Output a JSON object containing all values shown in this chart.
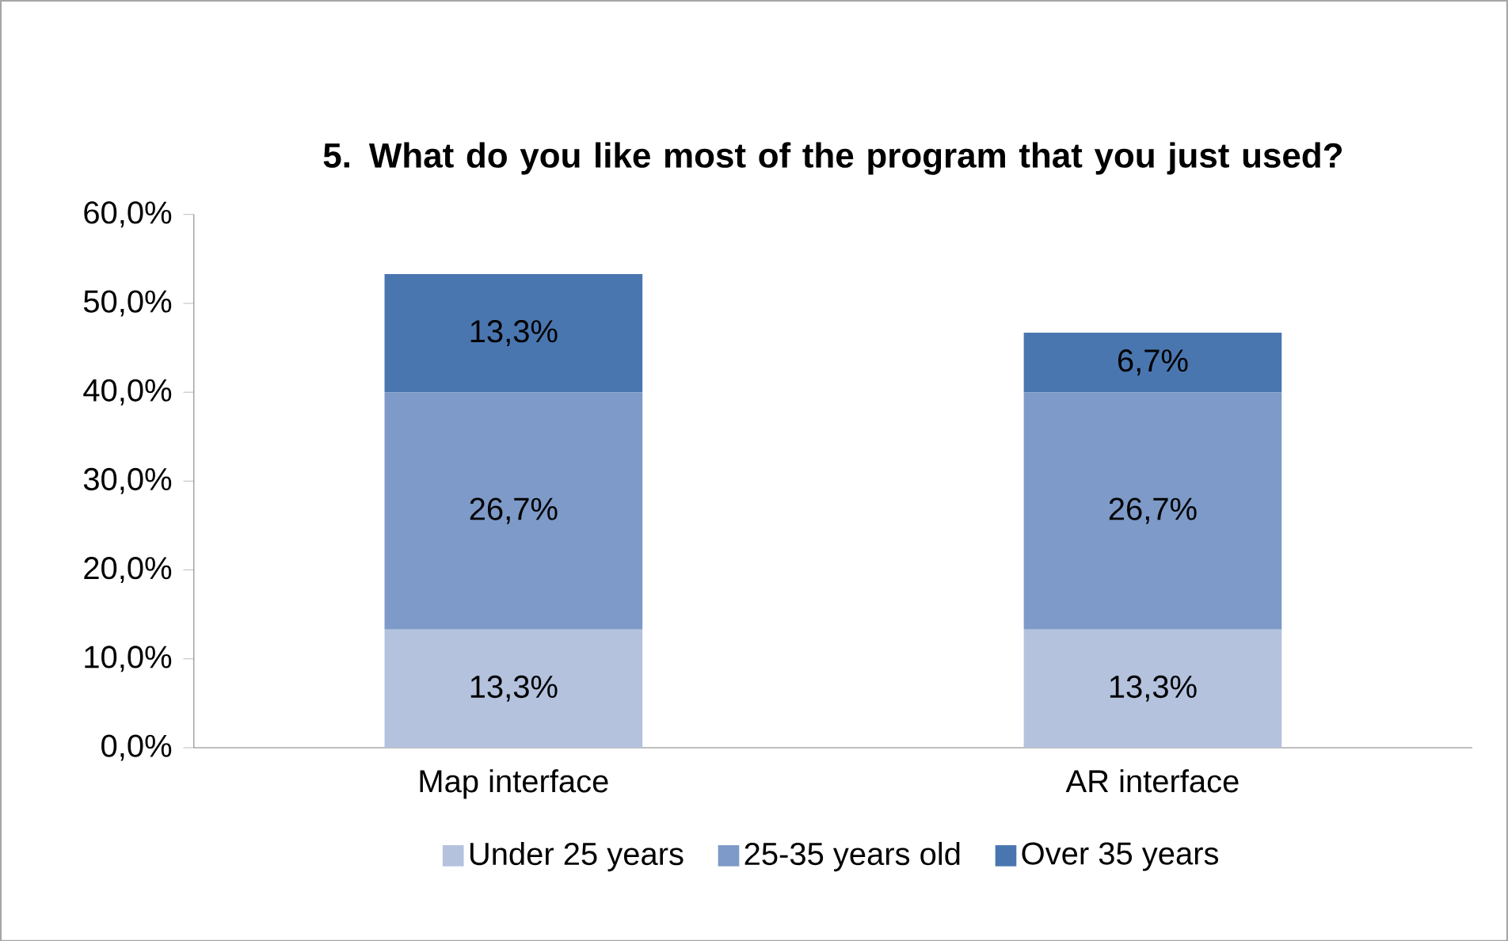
{
  "chart_data": {
    "type": "bar",
    "stacked": true,
    "title": "5. What do you like most of the program that you just used?",
    "categories": [
      "Map interface",
      "AR interface"
    ],
    "series": [
      {
        "name": "Under 25 years",
        "color": "#b4c2de",
        "values": [
          13.3,
          13.3
        ],
        "value_labels": [
          "13,3%",
          "13,3%"
        ]
      },
      {
        "name": "25-35 years old",
        "color": "#7d9ac8",
        "values": [
          26.7,
          26.7
        ],
        "value_labels": [
          "26,7%",
          "26,7%"
        ]
      },
      {
        "name": "Over 35 years",
        "color": "#4a76b0",
        "values": [
          13.3,
          6.7
        ],
        "value_labels": [
          "13,3%",
          "6,7%"
        ]
      }
    ],
    "ylim": [
      0,
      60
    ],
    "yticks": [
      {
        "value": 0,
        "label": "0,0%"
      },
      {
        "value": 10,
        "label": "10,0%"
      },
      {
        "value": 20,
        "label": "20,0%"
      },
      {
        "value": 30,
        "label": "30,0%"
      },
      {
        "value": 40,
        "label": "40,0%"
      },
      {
        "value": 50,
        "label": "50,0%"
      },
      {
        "value": 60,
        "label": "60,0%"
      }
    ],
    "grid": false,
    "legend": "bottom"
  }
}
